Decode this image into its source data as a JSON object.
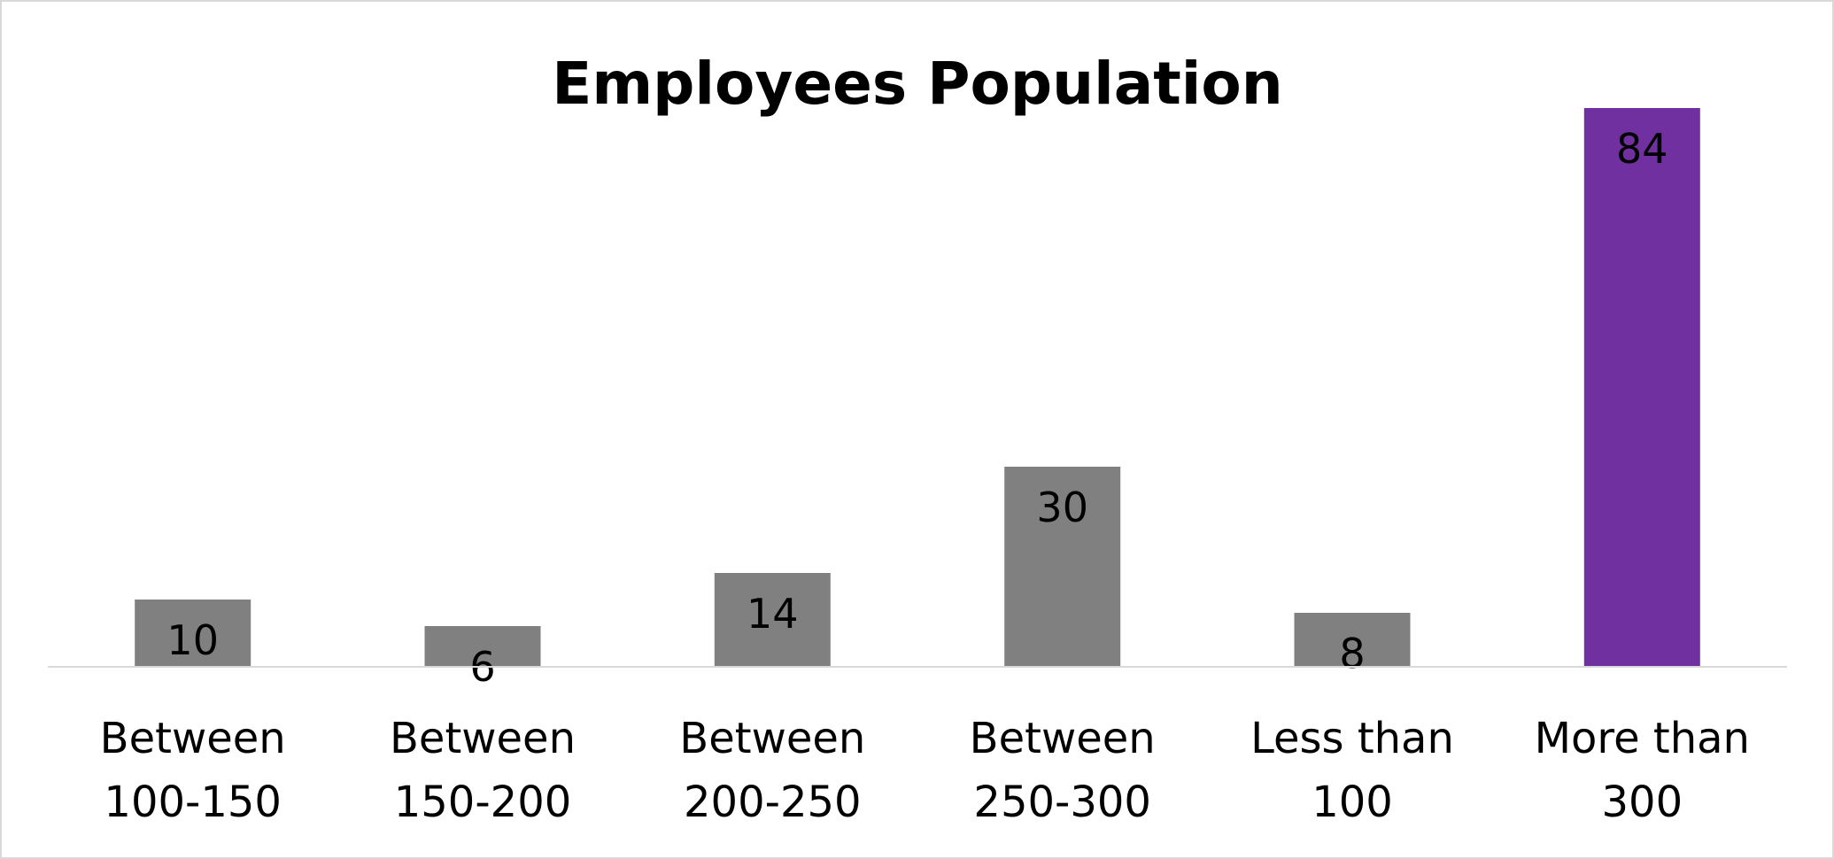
{
  "chart_data": {
    "type": "bar",
    "title": "Employees Population",
    "categories": [
      [
        "Between",
        "100-150"
      ],
      [
        "Between",
        "150-200"
      ],
      [
        "Between",
        "200-250"
      ],
      [
        "Between",
        "250-300"
      ],
      [
        "Less than",
        "100"
      ],
      [
        "More than",
        "300"
      ]
    ],
    "values": [
      10,
      6,
      14,
      30,
      8,
      84
    ],
    "ylim": [
      0,
      90
    ],
    "grid": false,
    "legend": "none",
    "colors": {
      "default_bar": "#808080",
      "highlight_bar": "#7030a0",
      "axis_line": "#d9d9d9"
    },
    "highlight_index": 5
  }
}
